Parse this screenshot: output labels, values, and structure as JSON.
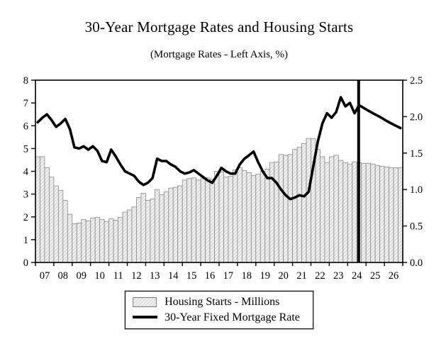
{
  "title": "30-Year Mortgage Rates and Housing Starts",
  "subtitle": "(Mortgage Rates - Left Axis, %)",
  "colors": {
    "line": "#000000",
    "bar_fill": "#efefef",
    "bar_hatch": "#c0c0c0",
    "bar_border": "#8a8a8a",
    "axis": "#000000",
    "legend_swatch_border": "#777777"
  },
  "chart_data": {
    "type": "combo",
    "title": "30-Year Mortgage Rates and Housing Starts",
    "subtitle": "(Mortgage Rates - Left Axis, %)",
    "frequency": "quarterly",
    "x_start": "2007Q1",
    "x_end": "2026Q4",
    "x_axis_start_year": 2007,
    "x_axis_end_year": 2027,
    "x_tick_labels": [
      "07",
      "08",
      "09",
      "10",
      "11",
      "12",
      "13",
      "14",
      "15",
      "16",
      "17",
      "18",
      "19",
      "20",
      "21",
      "22",
      "23",
      "24",
      "25",
      "26"
    ],
    "left_axis": {
      "min": 0,
      "max": 8,
      "tick_labels": [
        "0",
        "1",
        "2",
        "3",
        "4",
        "5",
        "6",
        "7",
        "8"
      ]
    },
    "right_axis": {
      "min": 0,
      "max": 2.5,
      "tick_labels": [
        "0.0",
        "0.5",
        "1.0",
        "1.5",
        "2.0",
        "2.5"
      ]
    },
    "forecast_divider": {
      "x_year": 2024.6
    },
    "grid": false,
    "legend_position": "bottom",
    "series": [
      {
        "name": "Housing Starts - Millions",
        "type": "bar",
        "axis": "right",
        "values": [
          1.45,
          1.45,
          1.3,
          1.17,
          1.05,
          0.99,
          0.85,
          0.66,
          0.53,
          0.54,
          0.59,
          0.57,
          0.61,
          0.62,
          0.59,
          0.56,
          0.6,
          0.58,
          0.62,
          0.69,
          0.72,
          0.76,
          0.89,
          0.95,
          0.85,
          0.87,
          1.0,
          0.93,
          0.97,
          1.02,
          1.03,
          1.05,
          1.13,
          1.15,
          1.16,
          1.13,
          1.15,
          1.16,
          1.14,
          1.25,
          1.24,
          1.17,
          1.18,
          1.27,
          1.3,
          1.26,
          1.23,
          1.19,
          1.21,
          1.25,
          1.28,
          1.37,
          1.38,
          1.48,
          1.47,
          1.48,
          1.55,
          1.58,
          1.63,
          1.7,
          1.7,
          1.55,
          1.45,
          1.37,
          1.45,
          1.47,
          1.4,
          1.37,
          1.35,
          1.38,
          1.37,
          1.36,
          1.36,
          1.35,
          1.33,
          1.32,
          1.31,
          1.3,
          1.3,
          1.3
        ]
      },
      {
        "name": "30-Year Fixed Mortgage Rate",
        "type": "line",
        "axis": "left",
        "values": [
          6.15,
          6.35,
          6.5,
          6.25,
          5.95,
          6.1,
          6.3,
          5.85,
          5.05,
          5.0,
          5.1,
          4.95,
          5.1,
          4.9,
          4.45,
          4.4,
          4.95,
          4.65,
          4.3,
          4.0,
          3.9,
          3.8,
          3.55,
          3.4,
          3.5,
          3.7,
          4.55,
          4.45,
          4.45,
          4.3,
          4.2,
          4.0,
          3.9,
          3.95,
          4.05,
          3.9,
          3.75,
          3.6,
          3.5,
          3.8,
          4.15,
          4.0,
          3.9,
          3.9,
          4.3,
          4.55,
          4.7,
          4.87,
          4.4,
          4.0,
          3.7,
          3.7,
          3.5,
          3.2,
          2.95,
          2.78,
          2.85,
          2.95,
          2.9,
          3.1,
          4.2,
          5.3,
          6.1,
          6.55,
          6.35,
          6.6,
          7.25,
          6.85,
          7.0,
          6.55,
          6.9,
          6.78,
          6.66,
          6.55,
          6.44,
          6.33,
          6.21,
          6.1,
          6.0,
          5.9
        ]
      }
    ]
  }
}
